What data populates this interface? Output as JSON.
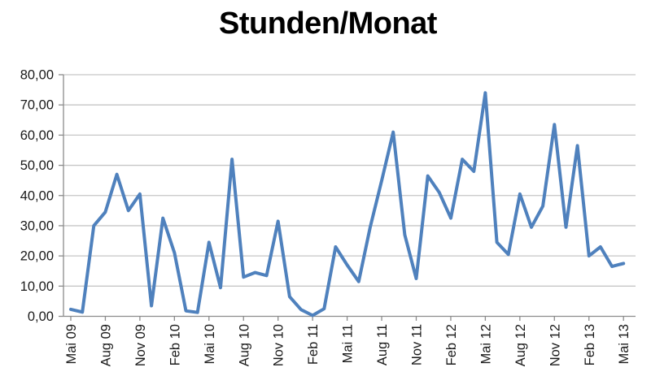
{
  "page": {
    "background": "#FFFFFF"
  },
  "chart_data": {
    "type": "line",
    "title": "Stunden/Monat",
    "x": [
      "Mai 09",
      "Jun 09",
      "Jul 09",
      "Aug 09",
      "Sep 09",
      "Okt 09",
      "Nov 09",
      "Dez 09",
      "Jan 10",
      "Feb 10",
      "Mär 10",
      "Apr 10",
      "Mai 10",
      "Jun 10",
      "Jul 10",
      "Aug 10",
      "Sep 10",
      "Okt 10",
      "Nov 10",
      "Dez 10",
      "Jan 11",
      "Feb 11",
      "Mär 11",
      "Apr 11",
      "Mai 11",
      "Jun 11",
      "Jul 11",
      "Aug 11",
      "Sep 11",
      "Okt 11",
      "Nov 11",
      "Dez 11",
      "Jan 12",
      "Feb 12",
      "Mär 12",
      "Apr 12",
      "Mai 12",
      "Jun 12",
      "Jul 12",
      "Aug 12",
      "Sep 12",
      "Okt 12",
      "Nov 12",
      "Dez 12",
      "Jan 13",
      "Feb 13",
      "Mär 13",
      "Apr 13",
      "Mai 13"
    ],
    "values": [
      2.3,
      1.4,
      30,
      34.5,
      47,
      35,
      40.5,
      3.5,
      32.5,
      21,
      1.8,
      1.3,
      24.5,
      9.5,
      52,
      13,
      14.5,
      13.5,
      31.5,
      6.5,
      2.2,
      0.3,
      2.5,
      23,
      17,
      11.5,
      29.5,
      45,
      61,
      27,
      12.5,
      46.5,
      41,
      32.5,
      52,
      48,
      74,
      24.5,
      20.5,
      40.5,
      29.5,
      36.5,
      63.5,
      29.5,
      56.5,
      20,
      23,
      16.5,
      17.5
    ],
    "ylim": [
      0,
      80
    ],
    "y_tick_step": 10,
    "y_tick_labels": [
      "0,00",
      "10,00",
      "20,00",
      "30,00",
      "40,00",
      "50,00",
      "60,00",
      "70,00",
      "80,00"
    ],
    "x_tick_every": 3,
    "x_tick_labels": [
      "Mai 09",
      "Aug 09",
      "Nov 09",
      "Feb 10",
      "Mai 10",
      "Aug 10",
      "Nov 10",
      "Feb 11",
      "Mai 11",
      "Aug 11",
      "Nov 11",
      "Feb 12",
      "Mai 12",
      "Aug 12",
      "Nov 12",
      "Feb 13",
      "Mai 13"
    ],
    "grid": true,
    "legend": "none",
    "line_color": "#4F81BD",
    "grid_color": "#C6C6C6",
    "axis_color": "#8C8C8C",
    "text_color": "#1A1A1A"
  }
}
